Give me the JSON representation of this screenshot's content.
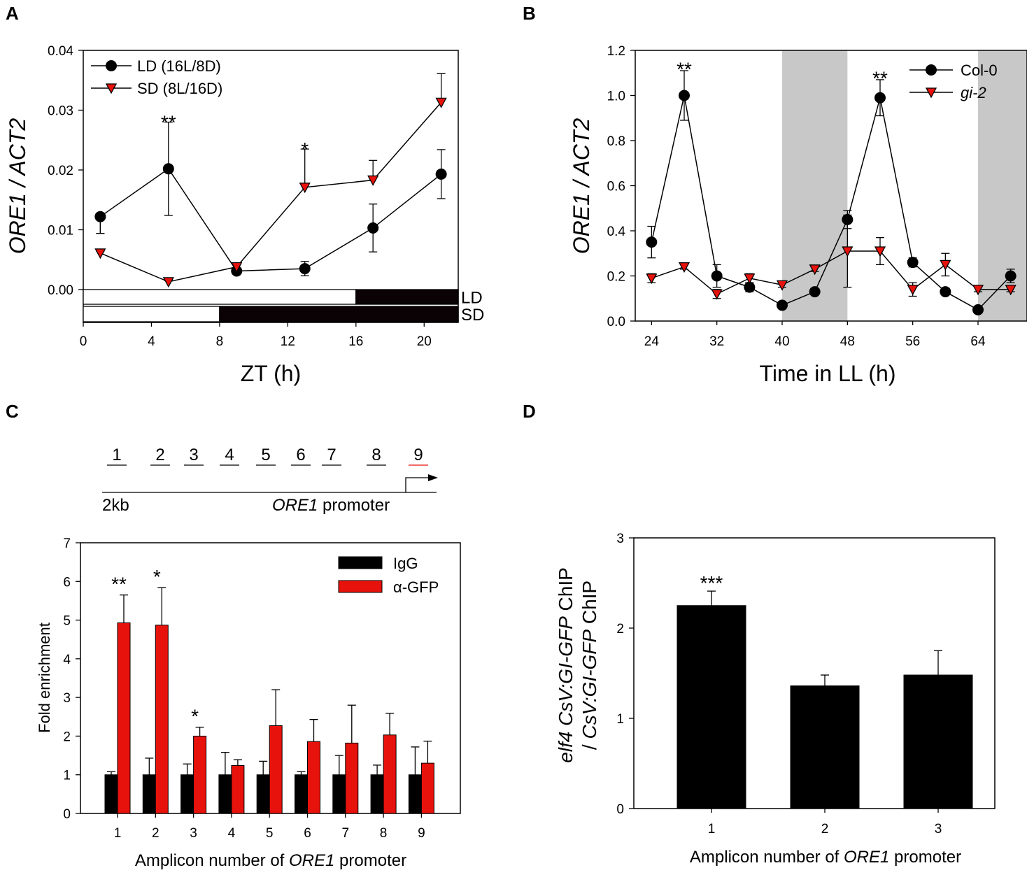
{
  "panels": {
    "A": "A",
    "B": "B",
    "C": "C",
    "D": "D"
  },
  "colors": {
    "black": "#000000",
    "red": "#e8120c",
    "shade": "#c8c8c8",
    "amplicon_highlight": "#e8120c"
  },
  "chart_data": [
    {
      "id": "A",
      "type": "line",
      "title": "",
      "xlabel": "ZT (h)",
      "ylabel_italic": "ORE1 / ACT2",
      "xlim": [
        0,
        22
      ],
      "ylim": [
        0,
        0.04
      ],
      "xticks": [
        0,
        4,
        8,
        12,
        16,
        20
      ],
      "yticks": [
        "0.00",
        "0.01",
        "0.02",
        "0.03",
        "0.04"
      ],
      "series": [
        {
          "name": "LD (16L/8D)",
          "marker": "circle",
          "color": "#000000",
          "x": [
            1,
            5,
            9,
            13,
            17,
            21
          ],
          "y": [
            0.0122,
            0.0202,
            0.0031,
            0.0035,
            0.0103,
            0.0193
          ],
          "err": [
            0.0028,
            0.0078,
            0.0005,
            0.0012,
            0.004,
            0.0041
          ]
        },
        {
          "name": "SD (8L/16D)",
          "marker": "triangle",
          "color": "#e8120c",
          "x": [
            1,
            5,
            9,
            13,
            17,
            21
          ],
          "y": [
            0.0061,
            0.0013,
            0.0038,
            0.0171,
            0.0183,
            0.0313
          ],
          "err": [
            0.0003,
            0.0002,
            0.0004,
            0.0064,
            0.0033,
            0.0048
          ]
        }
      ],
      "annotations": [
        {
          "x": 5,
          "y": 0.0285,
          "text": "**"
        },
        {
          "x": 13,
          "y": 0.024,
          "text": "*"
        }
      ],
      "photoperiod_bars": [
        {
          "label": "LD",
          "light": [
            0,
            16
          ],
          "dark": [
            16,
            22
          ]
        },
        {
          "label": "SD",
          "light": [
            0,
            8
          ],
          "dark": [
            8,
            22
          ]
        }
      ]
    },
    {
      "id": "B",
      "type": "line",
      "xlabel": "Time in LL (h)",
      "ylabel_italic": "ORE1 / ACT2",
      "xlim": [
        22,
        70
      ],
      "ylim": [
        0,
        1.2
      ],
      "xticks": [
        24,
        32,
        40,
        48,
        56,
        64
      ],
      "yticks": [
        "0.0",
        "0.2",
        "0.4",
        "0.6",
        "0.8",
        "1.0",
        "1.2"
      ],
      "shaded": [
        [
          40,
          48
        ],
        [
          64,
          70
        ]
      ],
      "series": [
        {
          "name": "Col-0",
          "marker": "circle",
          "color": "#000000",
          "x": [
            24,
            28,
            32,
            36,
            40,
            44,
            48,
            52,
            56,
            60,
            64,
            68
          ],
          "y": [
            0.35,
            1.0,
            0.2,
            0.15,
            0.07,
            0.13,
            0.45,
            0.99,
            0.26,
            0.13,
            0.05,
            0.2
          ],
          "err": [
            0.07,
            0.11,
            0.05,
            0.02,
            0.01,
            0.01,
            0.04,
            0.08,
            0.02,
            0.01,
            0.01,
            0.03
          ]
        },
        {
          "name": "gi-2",
          "marker": "triangle",
          "color": "#e8120c",
          "x": [
            24,
            28,
            32,
            36,
            40,
            44,
            48,
            52,
            56,
            60,
            64,
            68
          ],
          "y": [
            0.19,
            0.24,
            0.12,
            0.19,
            0.16,
            0.23,
            0.31,
            0.31,
            0.14,
            0.25,
            0.14,
            0.14
          ],
          "err": [
            0.02,
            0.01,
            0.02,
            0.02,
            0.01,
            0.01,
            0.16,
            0.06,
            0.03,
            0.05,
            0.01,
            0.01
          ]
        }
      ],
      "annotations": [
        {
          "x": 28,
          "y": 1.13,
          "text": "**"
        },
        {
          "x": 52,
          "y": 1.09,
          "text": "**"
        }
      ]
    },
    {
      "id": "C",
      "type": "bar",
      "xlabel_pre": "Amplicon number of ",
      "xlabel_italic": "ORE1",
      "xlabel_post": " promoter",
      "ylabel": "Fold enrichment",
      "ylim": [
        0,
        7
      ],
      "yticks": [
        "0",
        "1",
        "2",
        "3",
        "4",
        "5",
        "6",
        "7"
      ],
      "categories": [
        "1",
        "2",
        "3",
        "4",
        "5",
        "6",
        "7",
        "8",
        "9"
      ],
      "series": [
        {
          "name": "IgG",
          "color": "#000000",
          "values": [
            1.0,
            1.0,
            1.0,
            1.0,
            1.0,
            1.0,
            1.0,
            1.0,
            1.0
          ],
          "err": [
            0.08,
            0.43,
            0.28,
            0.58,
            0.35,
            0.08,
            0.5,
            0.25,
            0.72
          ]
        },
        {
          "name": "α-GFP",
          "color": "#e8120c",
          "values": [
            4.93,
            4.87,
            2.0,
            1.24,
            2.27,
            1.86,
            1.82,
            2.03,
            1.3
          ],
          "err": [
            0.72,
            0.97,
            0.23,
            0.15,
            0.93,
            0.57,
            0.98,
            0.56,
            0.57
          ]
        }
      ],
      "annotations": [
        {
          "cat": 0,
          "text": "**"
        },
        {
          "cat": 1,
          "text": "*"
        },
        {
          "cat": 2,
          "text": "*"
        }
      ],
      "promoter_map": {
        "amplicons": [
          "1",
          "2",
          "3",
          "4",
          "5",
          "6",
          "7",
          "8",
          "9"
        ],
        "highlight_index": 8,
        "length_label": "2kb",
        "promoter_italic": "ORE1",
        "promoter_suffix": " promoter"
      }
    },
    {
      "id": "D",
      "type": "bar",
      "xlabel_pre": "Amplicon number of ",
      "xlabel_italic": "ORE1",
      "xlabel_post": " promoter",
      "ylabel_line1_italic": "elf4 CsV:GI-GFP",
      "ylabel_line1_post": " ChIP",
      "ylabel_line2_pre": "/ ",
      "ylabel_line2_italic": "CsV:GI-GFP",
      "ylabel_line2_post": " ChIP",
      "ylim": [
        0,
        3
      ],
      "yticks": [
        "0",
        "1",
        "2",
        "3"
      ],
      "categories": [
        "1",
        "2",
        "3"
      ],
      "values": [
        2.25,
        1.36,
        1.48
      ],
      "err": [
        0.16,
        0.12,
        0.27
      ],
      "annotations": [
        {
          "cat": 0,
          "text": "***"
        }
      ]
    }
  ]
}
